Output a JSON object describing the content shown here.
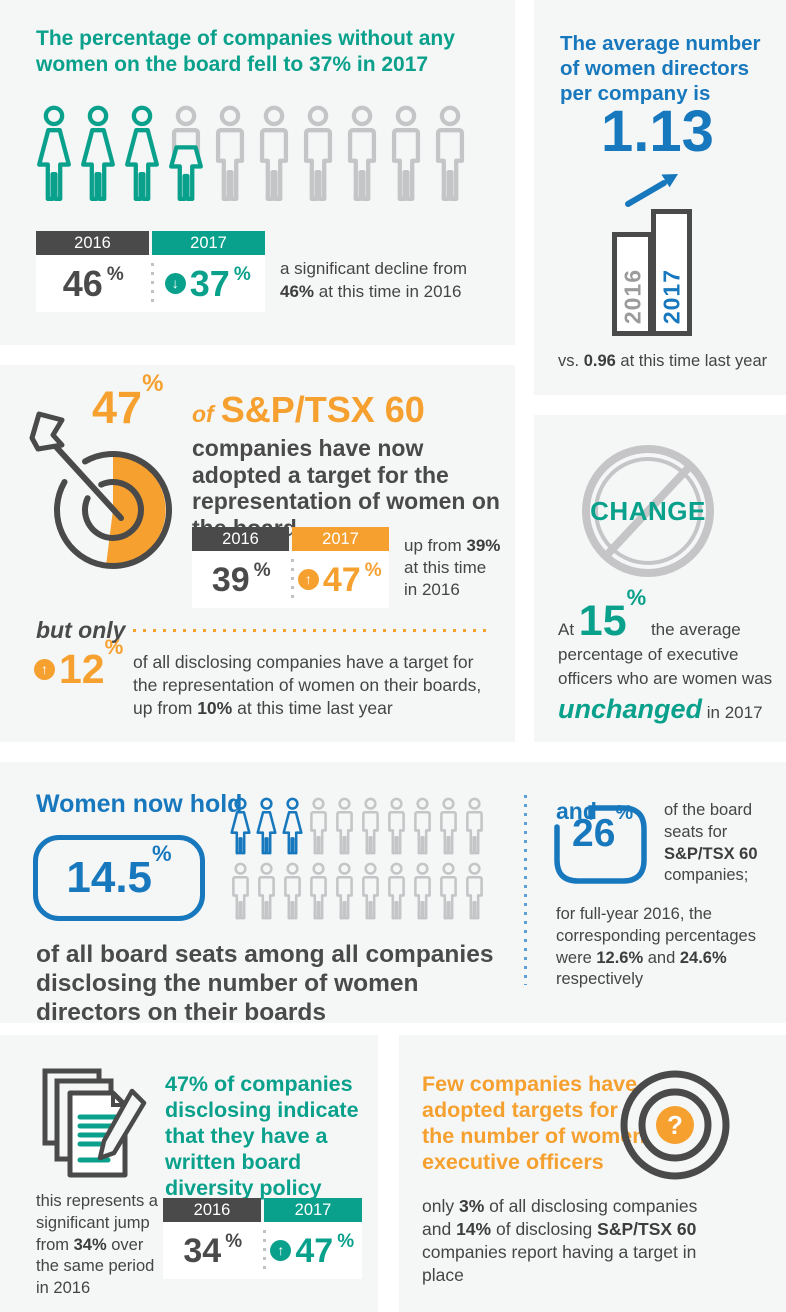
{
  "percent_sign": "%",
  "icons": {
    "up_arrow": "↑",
    "down_arrow": "↓",
    "question_mark": "?"
  },
  "colors": {
    "teal": "#0aa18c",
    "blue": "#1878bd",
    "orange": "#f5a02f",
    "dark": "#4a4a4a",
    "gray_icon": "#c4c5c6",
    "card_background": "#f5f6f6",
    "dotted_blue": "#5b9fd6"
  },
  "cards": {
    "no_women": {
      "heading": "The percentage of companies without any women on the board fell to 37% in 2017",
      "people": {
        "women": 3,
        "hybrid": 1,
        "men": 6
      },
      "table": {
        "years": [
          "2016",
          "2017"
        ],
        "values": [
          "46",
          "37"
        ],
        "trend": "down"
      },
      "note": {
        "pre": "a significant decline from",
        "bold": "46%",
        "post": "at this time in 2016"
      }
    },
    "avg_directors": {
      "heading": "The average number of women directors per company is",
      "value": "1.13",
      "bars": [
        {
          "label": "2016"
        },
        {
          "label": "2017"
        }
      ],
      "caption": {
        "pre": "vs.",
        "bold": "0.96",
        "post": "at this time last year"
      }
    },
    "target_board": {
      "pct": "47",
      "of_label": "of",
      "index_label": "S&P/TSX 60",
      "body": "companies have now adopted a target for the representation of women on the board",
      "table": {
        "years": [
          "2016",
          "2017"
        ],
        "values": [
          "39",
          "47"
        ],
        "trend": "up"
      },
      "side": {
        "pre": "up from",
        "bold": "39%",
        "post": "at this time in 2016"
      },
      "but_only": "but only",
      "sub_pct": "12",
      "sub_text": {
        "pre": "of all disclosing companies have a target for the representation of women on their boards, up from",
        "bold": "10%",
        "post": "at this time last year"
      }
    },
    "no_change": {
      "badge_text": "CHANGE",
      "text": {
        "at": "At",
        "pct": "15",
        "mid": "the average percentage of executive officers who are women was",
        "highlight": "unchanged",
        "post": "in 2017"
      }
    },
    "board_seats": {
      "heading": "Women now hold",
      "pct": "14.5",
      "people_rows": [
        {
          "women": 3,
          "men": 7
        },
        {
          "women": 0,
          "men": 10
        }
      ],
      "body": "of all board seats among all companies disclosing the number of women directors on their boards",
      "and_label": "and",
      "tsx_pct": "26",
      "tsx_text": {
        "pre": "of the board seats for",
        "bold": "S&P/TSX 60",
        "post": "companies;"
      },
      "footnote": {
        "pre": "for full-year 2016, the corresponding percentages were",
        "bold1": "12.6%",
        "mid": "and",
        "bold2": "24.6%",
        "post": "respectively"
      }
    },
    "diversity_policy": {
      "heading": "47% of companies disclosing indicate that they have a written board diversity policy",
      "note": {
        "pre": "this represents a significant jump from",
        "bold": "34%",
        "post": "over the same period in 2016"
      },
      "table": {
        "years": [
          "2016",
          "2017"
        ],
        "values": [
          "34",
          "47"
        ],
        "trend": "up"
      }
    },
    "exec_targets": {
      "heading": "Few companies have adopted targets for the number of women executive officers",
      "body": {
        "pre": "only",
        "bold1": "3%",
        "mid1": "of all disclosing companies and",
        "bold2": "14%",
        "mid2": "of disclosing",
        "bold3": "S&P/TSX 60",
        "post": "companies report having a target in place"
      }
    }
  }
}
